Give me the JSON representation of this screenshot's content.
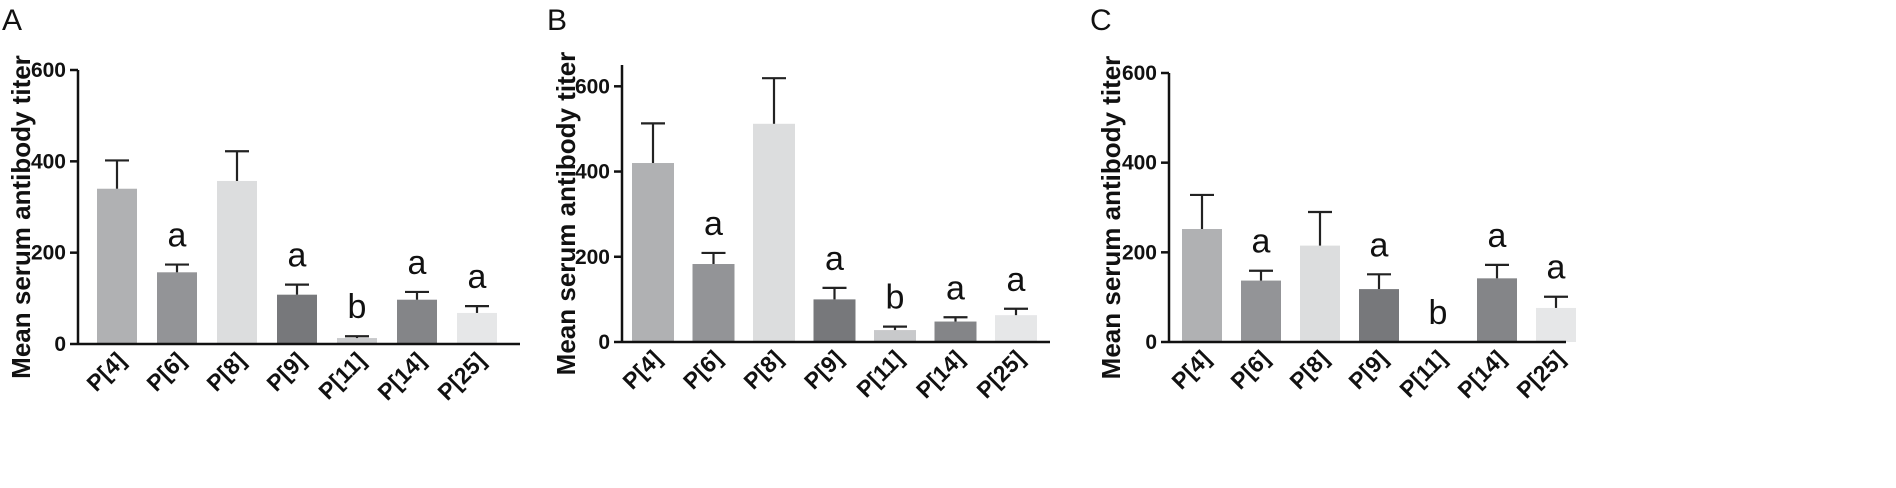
{
  "chart_data": [
    {
      "panel": "A",
      "type": "bar",
      "ylabel": "Mean serum antibody titer",
      "ylim": [
        0,
        600
      ],
      "yticks": [
        0,
        200,
        400,
        600
      ],
      "categories": [
        "P[4]",
        "P[6]",
        "P[8]",
        "P[9]",
        "P[11]",
        "P[14]",
        "P[25]"
      ],
      "values": [
        340,
        157,
        357,
        108,
        13,
        97,
        68
      ],
      "errors": [
        62,
        17,
        65,
        22,
        4,
        17,
        15
      ],
      "significance": [
        "",
        "a",
        "",
        "a",
        "b",
        "a",
        "a"
      ],
      "colors": [
        "#b0b1b3",
        "#939497",
        "#dcddde",
        "#77787b",
        "#c8c9cb",
        "#848588",
        "#e6e7e8"
      ]
    },
    {
      "panel": "B",
      "type": "bar",
      "ylabel": "Mean serum antibody titer",
      "ylim": [
        0,
        650
      ],
      "yticks": [
        0,
        200,
        400,
        600
      ],
      "categories": [
        "P[4]",
        "P[6]",
        "P[8]",
        "P[9]",
        "P[11]",
        "P[14]",
        "P[25]"
      ],
      "values": [
        420,
        183,
        512,
        100,
        28,
        48,
        63
      ],
      "errors": [
        93,
        26,
        107,
        27,
        8,
        10,
        15
      ],
      "significance": [
        "",
        "a",
        "",
        "a",
        "b",
        "a",
        "a"
      ],
      "colors": [
        "#b0b1b3",
        "#939497",
        "#dcddde",
        "#77787b",
        "#c8c9cb",
        "#848588",
        "#e6e7e8"
      ]
    },
    {
      "panel": "C",
      "type": "bar",
      "ylabel": "Mean serum antibody titer",
      "ylim": [
        0,
        600
      ],
      "yticks": [
        0,
        200,
        400,
        600
      ],
      "categories": [
        "P[4]",
        "P[6]",
        "P[8]",
        "P[9]",
        "P[11]",
        "P[14]",
        "P[25]"
      ],
      "values": [
        252,
        137,
        215,
        118,
        0,
        142,
        76
      ],
      "errors": [
        76,
        22,
        75,
        33,
        0,
        30,
        25
      ],
      "significance": [
        "",
        "a",
        "",
        "a",
        "b",
        "a",
        "a"
      ],
      "colors": [
        "#b0b1b3",
        "#939497",
        "#dcddde",
        "#77787b",
        "#c8c9cb",
        "#848588",
        "#e6e7e8"
      ]
    }
  ]
}
